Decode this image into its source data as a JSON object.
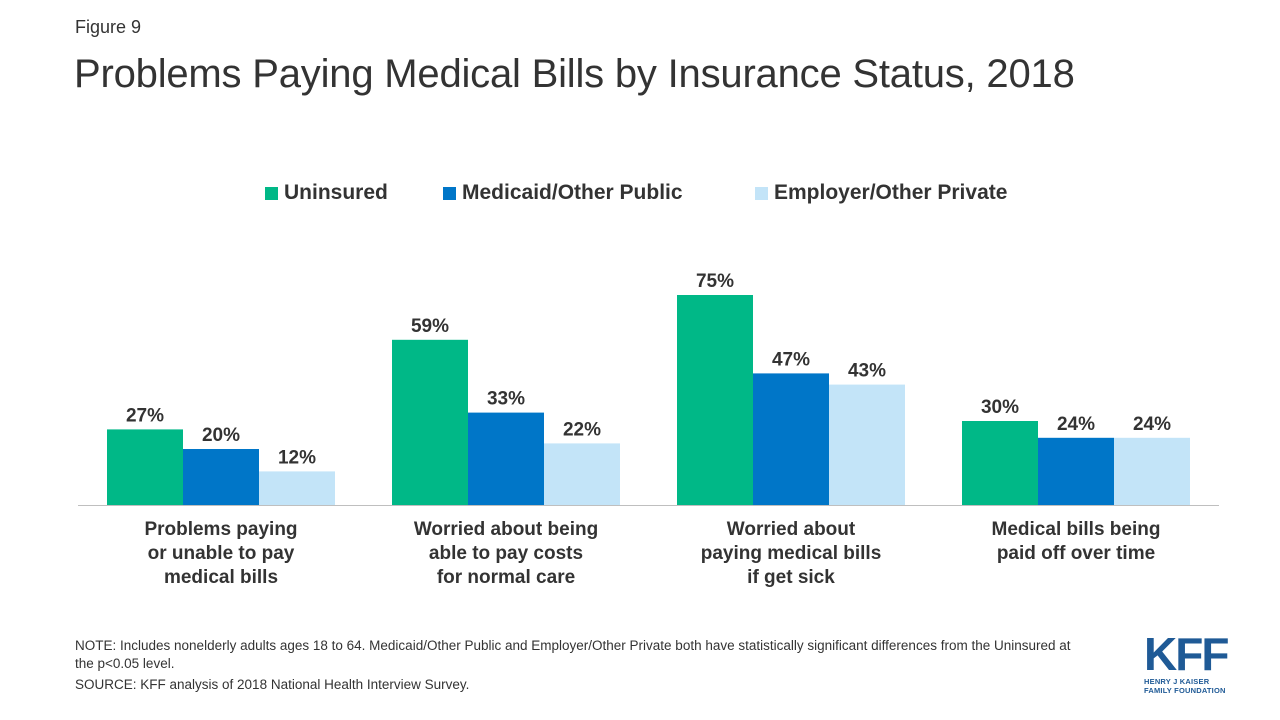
{
  "figure_label": "Figure 9",
  "title": "Problems Paying Medical Bills by Insurance Status, 2018",
  "legend": [
    {
      "label": "Uninsured",
      "color": "#00b887"
    },
    {
      "label": "Medicaid/Other Public",
      "color": "#0076c8"
    },
    {
      "label": "Employer/Other Private",
      "color": "#c3e4f8"
    }
  ],
  "categories": [
    {
      "line1": "Problems paying",
      "line2": "or unable to pay",
      "line3": "medical bills"
    },
    {
      "line1": "Worried about being",
      "line2": "able to pay costs",
      "line3": "for normal care"
    },
    {
      "line1": "Worried about",
      "line2": "paying medical bills",
      "line3": "if get sick"
    },
    {
      "line1": "Medical bills being",
      "line2": "paid off over time",
      "line3": ""
    }
  ],
  "chart_data": {
    "type": "bar",
    "categories": [
      "Problems paying or unable to pay medical bills",
      "Worried about being able to pay costs for normal care",
      "Worried about paying medical bills if get sick",
      "Medical bills being paid off over time"
    ],
    "series": [
      {
        "name": "Uninsured",
        "values": [
          27,
          59,
          75,
          30
        ],
        "color": "#00b887"
      },
      {
        "name": "Medicaid/Other Public",
        "values": [
          20,
          33,
          47,
          24
        ],
        "color": "#0076c8"
      },
      {
        "name": "Employer/Other Private",
        "values": [
          12,
          22,
          43,
          24
        ],
        "color": "#c3e4f8"
      }
    ],
    "value_labels": [
      [
        "27%",
        "59%",
        "75%",
        "30%"
      ],
      [
        "20%",
        "33%",
        "47%",
        "24%"
      ],
      [
        "12%",
        "22%",
        "43%",
        "24%"
      ]
    ],
    "ylim": [
      0,
      100
    ],
    "grid": false,
    "legend_position": "top"
  },
  "note": "NOTE: Includes nonelderly adults ages 18 to 64. Medicaid/Other Public and Employer/Other Private both have statistically significant differences from the Uninsured at the p<0.05 level.",
  "source": "SOURCE: KFF analysis of 2018 National Health Interview Survey.",
  "logo": {
    "mark": "KFF",
    "line1": "HENRY J KAISER",
    "line2": "FAMILY FOUNDATION"
  }
}
